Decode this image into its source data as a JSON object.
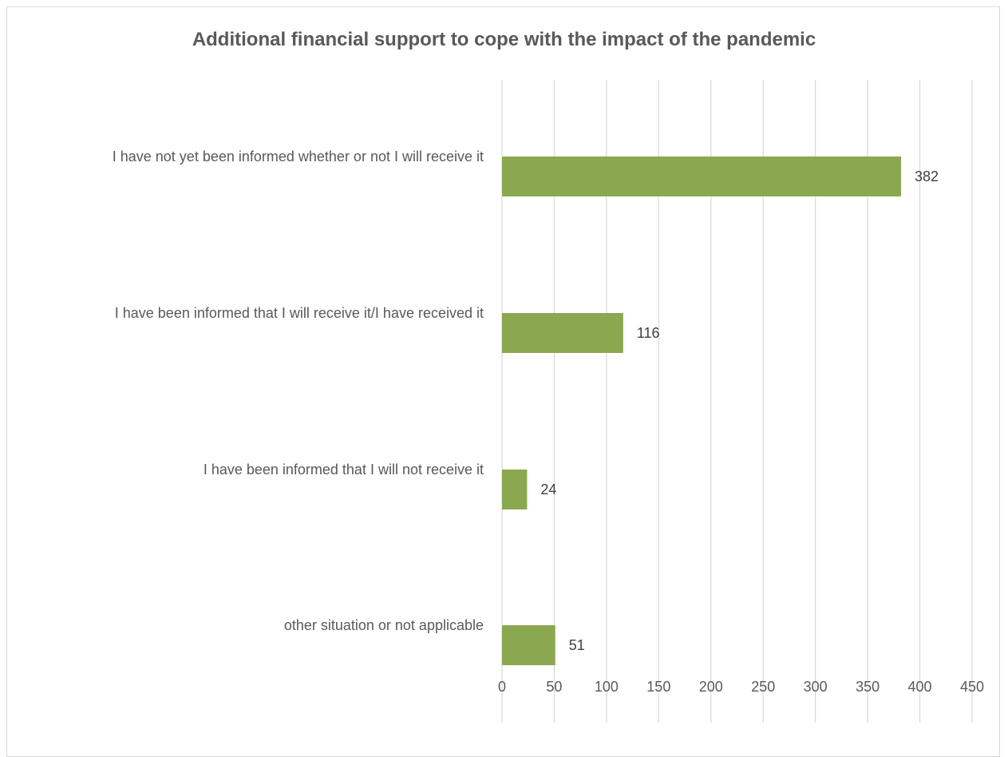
{
  "chart_data": {
    "type": "bar",
    "orientation": "horizontal",
    "title": "Additional financial support to cope with the impact of the pandemic",
    "categories": [
      "I have not yet been informed whether or not I will receive it",
      "I have been informed that I will receive it/I have received it",
      "I have been informed that I will not receive it",
      "other situation or not applicable"
    ],
    "values": [
      382,
      116,
      24,
      51
    ],
    "data_labels": [
      "382",
      "116",
      "24",
      "51"
    ],
    "xlim": [
      0,
      450
    ],
    "x_ticks": [
      0,
      50,
      100,
      150,
      200,
      250,
      300,
      350,
      400,
      450
    ],
    "x_tick_labels": [
      "0",
      "50",
      "100",
      "150",
      "200",
      "250",
      "300",
      "350",
      "400",
      "450"
    ],
    "grid": true,
    "legend": "none",
    "colors": {
      "bar": "#8AA84F",
      "grid": "#d9d9d9",
      "text": "#595959"
    }
  }
}
